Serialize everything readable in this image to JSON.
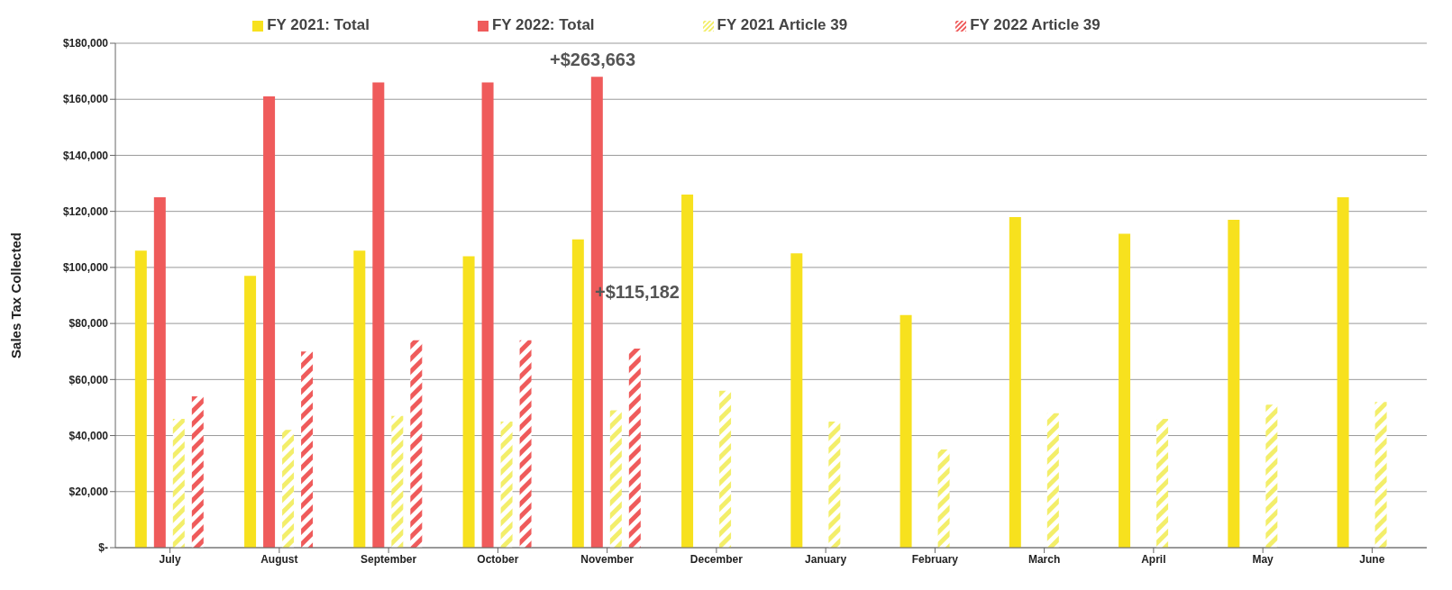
{
  "chart_data": {
    "type": "bar",
    "ylabel": "Sales Tax Collected",
    "categories": [
      "July",
      "August",
      "September",
      "October",
      "November",
      "December",
      "January",
      "February",
      "March",
      "April",
      "May",
      "June"
    ],
    "series": [
      {
        "name": "FY 2021: Total",
        "color": "#f7e11e",
        "values": [
          106000,
          97000,
          106000,
          104000,
          110000,
          126000,
          105000,
          83000,
          118000,
          112000,
          117000,
          125000
        ]
      },
      {
        "name": "FY 2022: Total",
        "color": "#ef5b5b",
        "values": [
          125000,
          161000,
          166000,
          166000,
          168000,
          null,
          null,
          null,
          null,
          null,
          null,
          null
        ]
      },
      {
        "name": "FY 2021 Article 39",
        "color": "#f3ee6a",
        "values": [
          46000,
          42000,
          47000,
          45000,
          49000,
          56000,
          45000,
          35000,
          48000,
          46000,
          51000,
          52000
        ]
      },
      {
        "name": "FY 2022 Article 39",
        "color": "#ef5b5b",
        "values": [
          54000,
          70000,
          74000,
          74000,
          71000,
          null,
          null,
          null,
          null,
          null,
          null,
          null
        ]
      }
    ],
    "ylim": [
      0,
      180000
    ],
    "yticks": [
      {
        "value": 0,
        "label": "$-"
      },
      {
        "value": 20000,
        "label": "$20,000"
      },
      {
        "value": 40000,
        "label": "$40,000"
      },
      {
        "value": 60000,
        "label": "$60,000"
      },
      {
        "value": 80000,
        "label": "$80,000"
      },
      {
        "value": 100000,
        "label": "$100,000"
      },
      {
        "value": 120000,
        "label": "$120,000"
      },
      {
        "value": 140000,
        "label": "$140,000"
      },
      {
        "value": 160000,
        "label": "$160,000"
      },
      {
        "value": 180000,
        "label": "$180,000"
      }
    ],
    "grid": "y",
    "legend": "top",
    "annotations": [
      "+$263,663",
      "+$115,182"
    ]
  }
}
